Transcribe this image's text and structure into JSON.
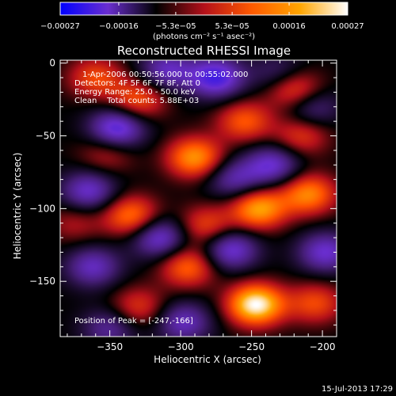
{
  "chart_data": {
    "type": "heatmap",
    "title": "Reconstructed RHESSI Image",
    "xlabel": "Heliocentric X (arcsec)",
    "ylabel": "Heliocentric Y (arcsec)",
    "xlim": [
      -385,
      -190
    ],
    "ylim": [
      -188,
      2
    ],
    "x_ticks": [
      -350,
      -300,
      -250,
      -200
    ],
    "y_ticks": [
      0,
      -50,
      -100,
      -150
    ],
    "x_tick_labels": [
      "−350",
      "−300",
      "−250",
      "−200"
    ],
    "y_tick_labels": [
      "0",
      "−50",
      "−100",
      "−150"
    ],
    "colorbar": {
      "range": [
        -0.00027,
        0.00027
      ],
      "tick_values": [
        -0.00027,
        -0.00016,
        -5.3e-05,
        5.3e-05,
        0.00016,
        0.00027
      ],
      "tick_labels": [
        "−0.00027",
        "−0.00016",
        "−5.3e−05",
        "5.3e−05",
        "0.00016",
        "0.00027"
      ],
      "unit_label": "(photons cm⁻² s⁻¹ asec⁻²)",
      "colors": [
        "#0000ff",
        "#6a2ecf",
        "#000000",
        "#b3101a",
        "#ff5a00",
        "#ffa500",
        "#ffffff"
      ]
    },
    "annotations": {
      "time_range": "1-Apr-2006 00:50:56.000 to 00:55:02.000",
      "detectors": "Detectors: 4F 5F 6F 7F 8F, Att 0",
      "energy": "Energy Range: 25.0 - 50.0 keV",
      "clean": "Clean    Total counts: 5.88E+03",
      "peak": "Position of Peak = [-247,-166]"
    },
    "blobs": [
      {
        "x": -335,
        "y": -105,
        "v": 0.6
      },
      {
        "x": -330,
        "y": -25,
        "v": 0.5
      },
      {
        "x": -290,
        "y": -65,
        "v": 0.7
      },
      {
        "x": -295,
        "y": -140,
        "v": 0.55
      },
      {
        "x": -282,
        "y": -112,
        "v": 0.45
      },
      {
        "x": -245,
        "y": -100,
        "v": 0.75
      },
      {
        "x": -247,
        "y": -166,
        "v": 1.0
      },
      {
        "x": -205,
        "y": -165,
        "v": 0.45
      },
      {
        "x": -220,
        "y": -18,
        "v": 0.6
      },
      {
        "x": -210,
        "y": -90,
        "v": 0.65
      },
      {
        "x": -255,
        "y": -40,
        "v": 0.5
      },
      {
        "x": -215,
        "y": -50,
        "v": 0.4
      },
      {
        "x": -360,
        "y": -10,
        "v": 0.45
      },
      {
        "x": -352,
        "y": -62,
        "v": 0.3
      },
      {
        "x": -330,
        "y": -168,
        "v": 0.4
      },
      {
        "x": -375,
        "y": -110,
        "v": 0.25
      },
      {
        "x": -345,
        "y": -45,
        "v": -0.7
      },
      {
        "x": -365,
        "y": -88,
        "v": -0.55
      },
      {
        "x": -310,
        "y": -5,
        "v": -0.5
      },
      {
        "x": -275,
        "y": -10,
        "v": -0.7
      },
      {
        "x": -315,
        "y": -120,
        "v": -0.6
      },
      {
        "x": -262,
        "y": -80,
        "v": -0.45
      },
      {
        "x": -265,
        "y": -128,
        "v": -0.6
      },
      {
        "x": -235,
        "y": -70,
        "v": -0.55
      },
      {
        "x": -198,
        "y": -130,
        "v": -0.55
      },
      {
        "x": -362,
        "y": -140,
        "v": -0.5
      },
      {
        "x": -298,
        "y": -178,
        "v": -0.5
      },
      {
        "x": -230,
        "y": -8,
        "v": -0.35
      },
      {
        "x": -208,
        "y": -30,
        "v": -0.4
      },
      {
        "x": -350,
        "y": -182,
        "v": -0.4
      }
    ]
  },
  "footer": {
    "timestamp": "15-Jul-2013 17:29"
  }
}
